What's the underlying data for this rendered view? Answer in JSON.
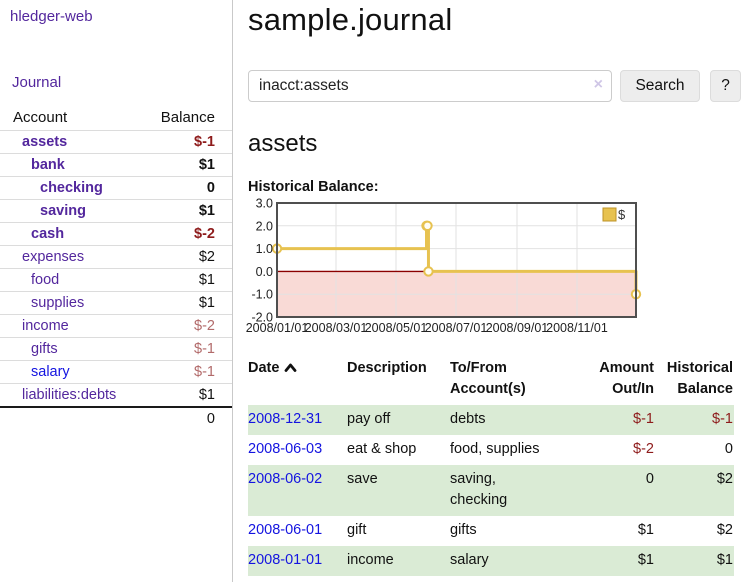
{
  "app": {
    "brand": "hledger-web"
  },
  "sidebar": {
    "journal_link": "Journal",
    "accounts": {
      "header": {
        "account": "Account",
        "balance": "Balance"
      },
      "rows": [
        {
          "name": "assets",
          "balance": "$-1",
          "depth": 0,
          "emph": true,
          "bal_class": "neg-strong"
        },
        {
          "name": "bank",
          "balance": "$1",
          "depth": 1,
          "emph": true,
          "bal_class": ""
        },
        {
          "name": "checking",
          "balance": "0",
          "depth": 2,
          "emph": true,
          "bal_class": ""
        },
        {
          "name": "saving",
          "balance": "$1",
          "depth": 2,
          "emph": true,
          "bal_class": ""
        },
        {
          "name": "cash",
          "balance": "$-2",
          "depth": 1,
          "emph": true,
          "bal_class": "neg-strong"
        },
        {
          "name": "expenses",
          "balance": "$2",
          "depth": 0,
          "emph": false,
          "bal_class": ""
        },
        {
          "name": "food",
          "balance": "$1",
          "depth": 1,
          "emph": false,
          "bal_class": ""
        },
        {
          "name": "supplies",
          "balance": "$1",
          "depth": 1,
          "emph": false,
          "bal_class": ""
        },
        {
          "name": "income",
          "balance": "$-2",
          "depth": 0,
          "emph": false,
          "bal_class": "neg-soft"
        },
        {
          "name": "gifts",
          "balance": "$-1",
          "depth": 1,
          "emph": false,
          "bal_class": "neg-soft"
        },
        {
          "name": "salary",
          "balance": "$-1",
          "depth": 1,
          "emph": false,
          "bal_class": "neg-soft",
          "link_blue": true
        },
        {
          "name": "liabilities:debts",
          "balance": "$1",
          "depth": 0,
          "emph": false,
          "bal_class": ""
        }
      ],
      "total": "0"
    }
  },
  "main": {
    "title": "sample.journal",
    "search": {
      "value": "inacct:assets",
      "clear_icon": "×",
      "search_button": "Search",
      "help_button": "?"
    },
    "account_heading": "assets",
    "chart_label": "Historical Balance:"
  },
  "chart_data": {
    "type": "line",
    "style": "step-after",
    "title": "Historical Balance",
    "xlabel": "",
    "ylabel": "",
    "ylim": [
      -2,
      3
    ],
    "xlim_dates": [
      "2008-01-01",
      "2008-12-31"
    ],
    "y_ticks": [
      "3.0",
      "2.0",
      "1.0",
      "0.0",
      "-1.0",
      "-2.0"
    ],
    "x_ticks": [
      "2008/01/01",
      "2008/03/01",
      "2008/05/01",
      "2008/07/01",
      "2008/09/01",
      "2008/11/01"
    ],
    "grid": true,
    "legend": {
      "label": "$",
      "position": "top-right"
    },
    "zero_line_color": "#8b0000",
    "negative_region_fill": "#f9dad6",
    "series": [
      {
        "name": "$",
        "color": "#e7c250",
        "points": [
          {
            "date": "2008-01-01",
            "value": 1
          },
          {
            "date": "2008-06-01",
            "value": 2
          },
          {
            "date": "2008-06-02",
            "value": 2
          },
          {
            "date": "2008-06-03",
            "value": 0
          },
          {
            "date": "2008-12-31",
            "value": -1
          }
        ]
      }
    ]
  },
  "register": {
    "header": {
      "date": "Date",
      "description": "Description",
      "accounts": "To/From\nAccount(s)",
      "amount": "Amount\nOut/In",
      "balance": "Historical\nBalance"
    },
    "rows": [
      {
        "date": "2008-12-31",
        "description": "pay off",
        "accounts": "debts",
        "amount": "$-1",
        "amount_class": "neg",
        "balance": "$-1",
        "balance_class": "neg"
      },
      {
        "date": "2008-06-03",
        "description": "eat & shop",
        "accounts": "food, supplies",
        "amount": "$-2",
        "amount_class": "neg",
        "balance": "0",
        "balance_class": ""
      },
      {
        "date": "2008-06-02",
        "description": "save",
        "accounts": "saving,\nchecking",
        "amount": "0",
        "amount_class": "",
        "balance": "$2",
        "balance_class": ""
      },
      {
        "date": "2008-06-01",
        "description": "gift",
        "accounts": "gifts",
        "amount": "$1",
        "amount_class": "",
        "balance": "$2",
        "balance_class": ""
      },
      {
        "date": "2008-01-01",
        "description": "income",
        "accounts": "salary",
        "amount": "$1",
        "amount_class": "",
        "balance": "$1",
        "balance_class": ""
      }
    ]
  }
}
